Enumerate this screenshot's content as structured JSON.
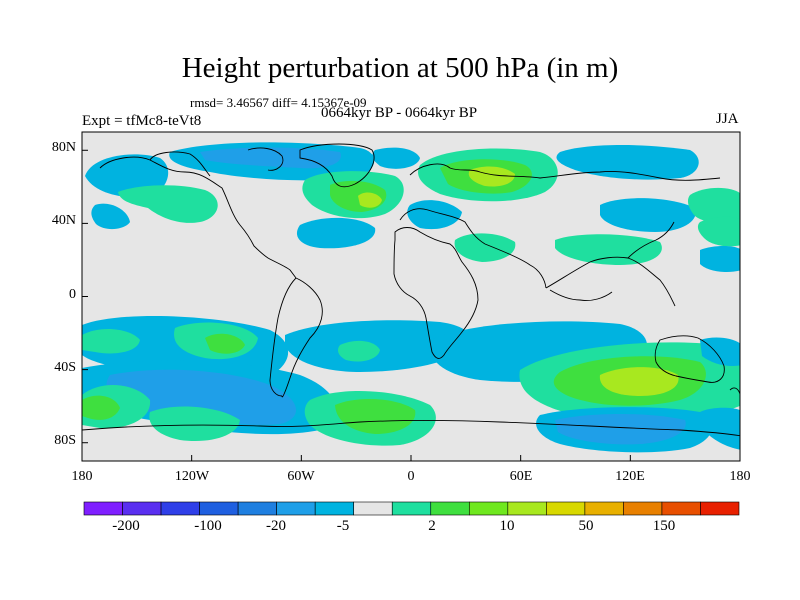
{
  "title": "Height perturbation at 500 hPa (in m)",
  "stats": "rmsd= 3.46567 diff= 4.15367e-09",
  "expt": "Expt = tfMc8-teVt8",
  "period": "0664kyr BP - 0664kyr BP",
  "season": "JJA",
  "map": {
    "projection": "cylindrical-equidistant",
    "lon_range": [
      -180,
      180
    ],
    "lat_range": [
      -90,
      90
    ],
    "lat_ticks": [
      "80N",
      "40N",
      "0",
      "40S",
      "80S"
    ],
    "lon_ticks": [
      "180",
      "120W",
      "60W",
      "0",
      "60E",
      "120E",
      "180"
    ],
    "background_color": "#e6e6e6",
    "coastline_color": "#000000"
  },
  "colorbar": {
    "colors": [
      "#7f1fff",
      "#5a2ff0",
      "#2f3fe8",
      "#1f5fe0",
      "#1f7fe0",
      "#1f9fe8",
      "#00b3e0",
      "#e6e6e6",
      "#1fdf9f",
      "#3fdf3f",
      "#6fe81f",
      "#a8e81f",
      "#d8d800",
      "#e8b000",
      "#e88000",
      "#e84f00",
      "#e82000"
    ],
    "labels": [
      "-200",
      "-100",
      "-20",
      "-5",
      "2",
      "10",
      "50",
      "150"
    ]
  },
  "field_levels": {
    "light_blue": "#00b3e0",
    "mid_blue": "#1f9fe8",
    "light_green": "#1fdf9f",
    "green": "#3fdf3f",
    "yellow_green": "#a8e81f"
  }
}
